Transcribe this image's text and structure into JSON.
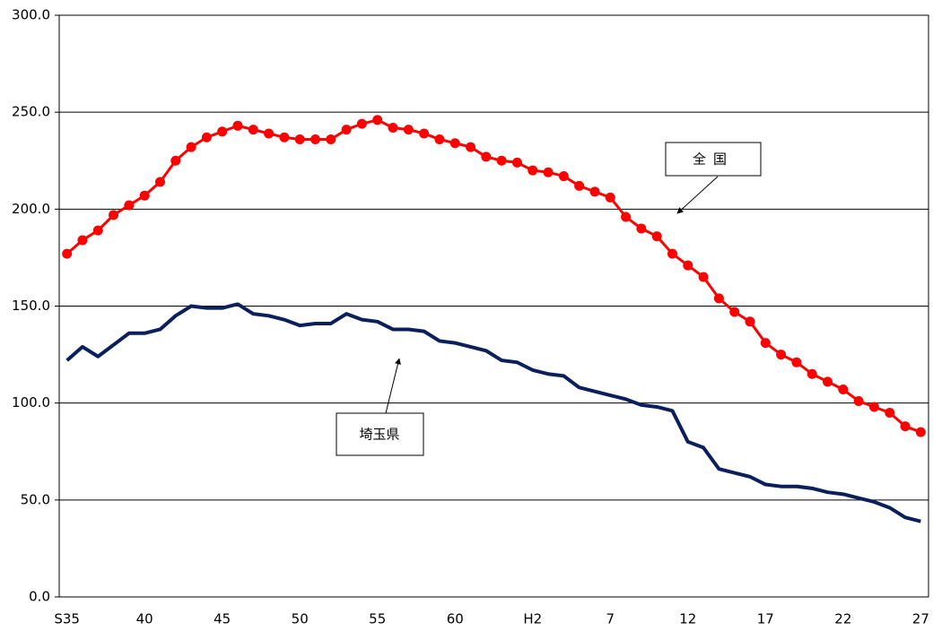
{
  "chart_data": {
    "type": "line",
    "categories": [
      "S35",
      null,
      null,
      null,
      null,
      "40",
      null,
      null,
      null,
      null,
      "45",
      null,
      null,
      null,
      null,
      "50",
      null,
      null,
      null,
      null,
      "55",
      null,
      null,
      null,
      null,
      "60",
      null,
      null,
      null,
      null,
      "H2",
      null,
      null,
      null,
      null,
      "7",
      null,
      null,
      null,
      null,
      "12",
      null,
      null,
      null,
      null,
      "17",
      null,
      null,
      null,
      null,
      "22",
      null,
      null,
      null,
      null,
      "27"
    ],
    "series": [
      {
        "name": "全国",
        "color": "#ff0000",
        "marker": true,
        "values": [
          177,
          184,
          189,
          197,
          202,
          207,
          214,
          225,
          232,
          237,
          240,
          243,
          241,
          239,
          237,
          236,
          236,
          236,
          241,
          244,
          246,
          242,
          241,
          239,
          236,
          234,
          232,
          227,
          225,
          224,
          220,
          219,
          217,
          212,
          209,
          206,
          196,
          190,
          186,
          177,
          171,
          165,
          154,
          147,
          142,
          131,
          125,
          121,
          115,
          111,
          107,
          101,
          98,
          95,
          88,
          85
        ]
      },
      {
        "name": "埼玉県",
        "color": "#0a1f5c",
        "marker": false,
        "values": [
          122,
          129,
          124,
          130,
          136,
          136,
          138,
          145,
          150,
          149,
          149,
          151,
          146,
          145,
          143,
          140,
          141,
          141,
          146,
          143,
          142,
          138,
          138,
          137,
          132,
          131,
          129,
          127,
          122,
          121,
          117,
          115,
          114,
          108,
          106,
          104,
          102,
          99,
          98,
          96,
          80,
          77,
          66,
          64,
          62,
          58,
          57,
          57,
          56,
          54,
          53,
          51,
          49,
          46,
          41,
          39
        ]
      }
    ],
    "ylim": [
      0,
      300
    ],
    "yticks": [
      {
        "value": 0,
        "label": "0.0"
      },
      {
        "value": 50,
        "label": "50.0"
      },
      {
        "value": 100,
        "label": "100.0"
      },
      {
        "value": 150,
        "label": "150.0"
      },
      {
        "value": 200,
        "label": "200.0"
      },
      {
        "value": 250,
        "label": "250.0"
      },
      {
        "value": 300,
        "label": "300.0"
      }
    ],
    "grid": true
  }
}
